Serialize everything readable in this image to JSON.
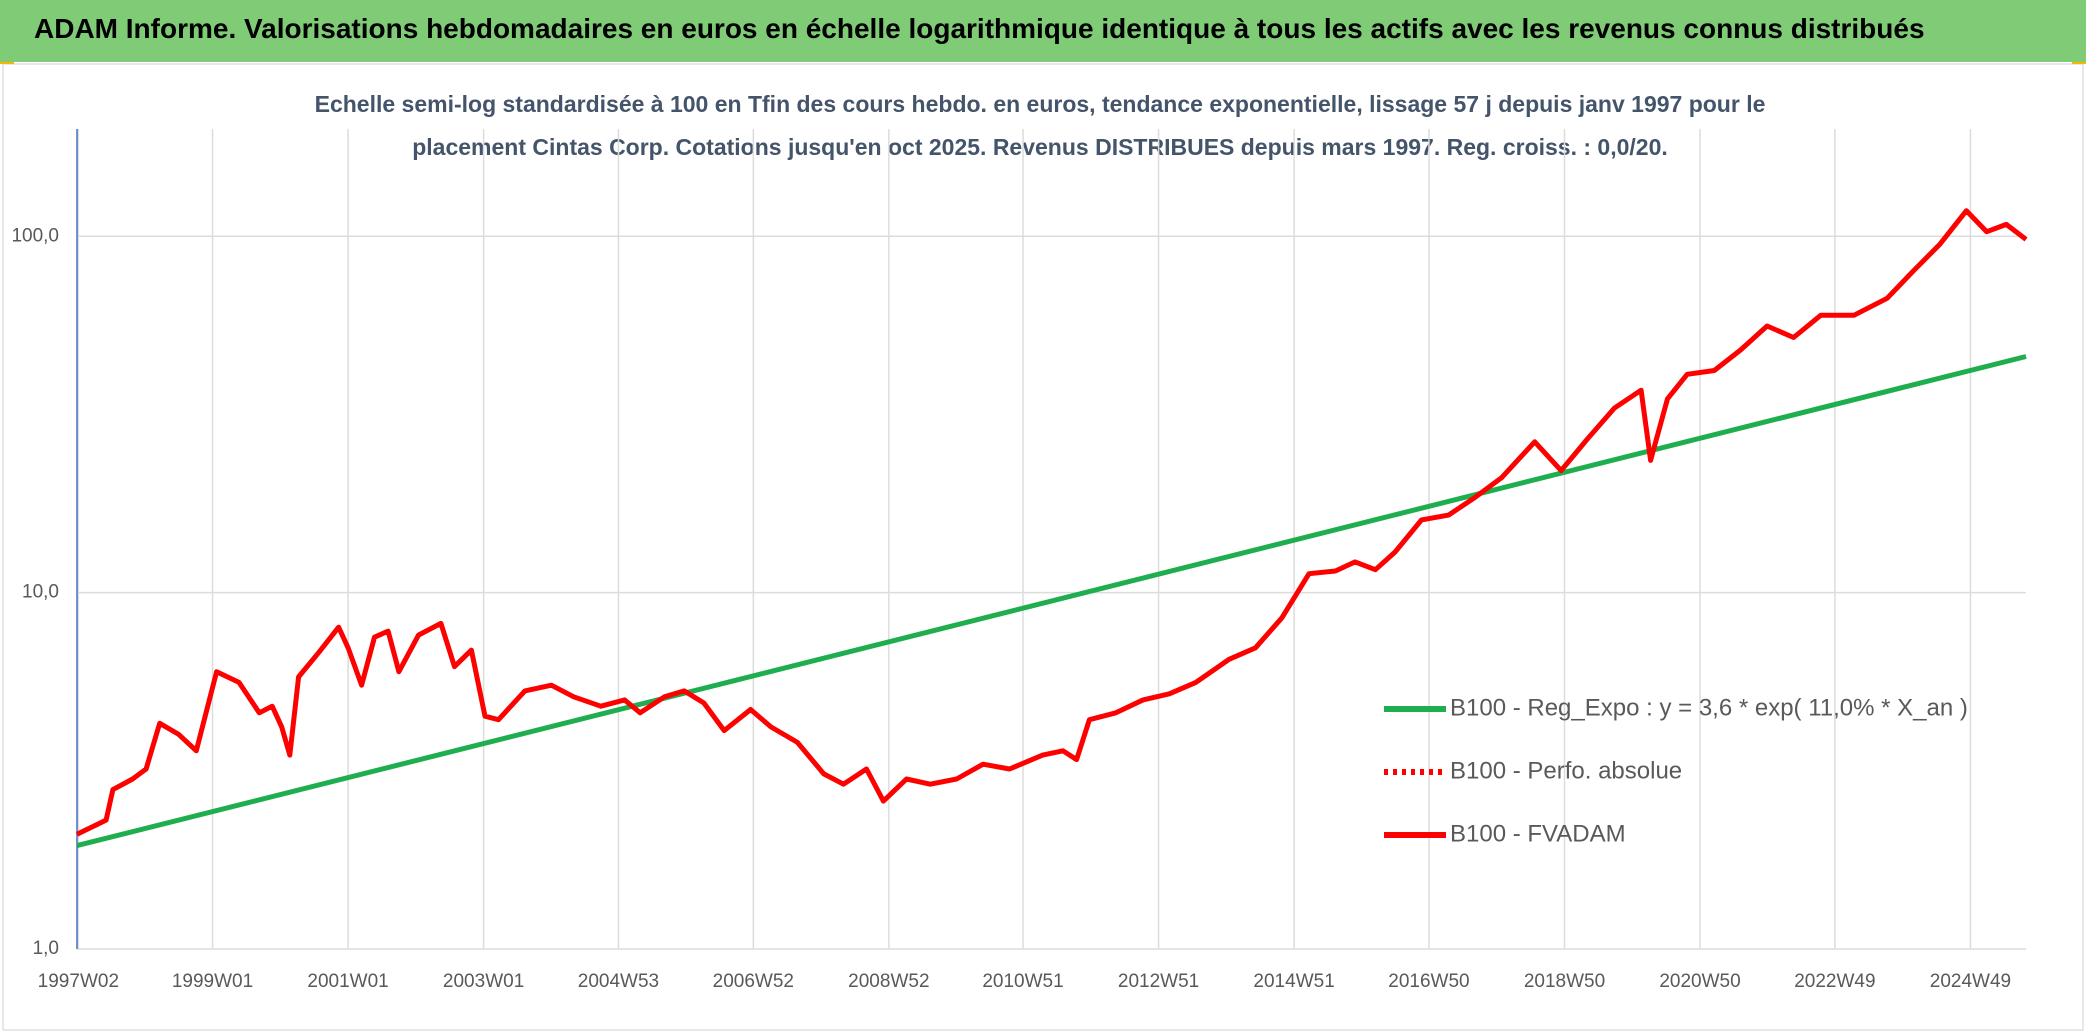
{
  "header": {
    "title": "ADAM Informe. Valorisations hebdomadaires en euros en échelle logarithmique identique à tous les actifs avec les revenus connus distribués"
  },
  "chart_data": {
    "type": "line",
    "subtitle": [
      "Echelle semi-log standardisée à 100 en Tfin des cours hebdo. en euros, tendance exponentielle, lissage 57 j depuis janv 1997 pour le",
      "placement Cintas Corp. Cotations jusqu'en oct 2025. Revenus DISTRIBUES depuis mars 1997. Reg. croiss. : 0,0/20."
    ],
    "log_scale": true,
    "grid": true,
    "legend": "right",
    "xlim": [
      1997.0,
      2025.76
    ],
    "xticks": [
      {
        "value": 1997.02,
        "label": "1997W02"
      },
      {
        "value": 1999.0,
        "label": "1999W01"
      },
      {
        "value": 2001.0,
        "label": "2001W01"
      },
      {
        "value": 2003.0,
        "label": "2003W01"
      },
      {
        "value": 2004.99,
        "label": "2004W53"
      },
      {
        "value": 2006.98,
        "label": "2006W52"
      },
      {
        "value": 2008.98,
        "label": "2008W52"
      },
      {
        "value": 2010.96,
        "label": "2010W51"
      },
      {
        "value": 2012.96,
        "label": "2012W51"
      },
      {
        "value": 2014.96,
        "label": "2014W51"
      },
      {
        "value": 2016.95,
        "label": "2016W50"
      },
      {
        "value": 2018.95,
        "label": "2018W50"
      },
      {
        "value": 2020.95,
        "label": "2020W50"
      },
      {
        "value": 2022.94,
        "label": "2022W49"
      },
      {
        "value": 2024.94,
        "label": "2024W49"
      }
    ],
    "ylim": [
      1,
      200
    ],
    "yticks": [
      {
        "value": 1,
        "label": "1,0"
      },
      {
        "value": 10,
        "label": "10,0"
      },
      {
        "value": 100,
        "label": "100,0"
      }
    ],
    "series": [
      {
        "name": "B100 - Reg_Expo : y = 3,6 * exp( 11,0% *  X_an )",
        "color": "#1fae4f",
        "style": "solid",
        "x": [
          1997.0,
          2025.76
        ],
        "values": [
          1.95,
          46
        ]
      },
      {
        "name": "B100 - Perfo. absolue",
        "color": "#ff0000",
        "style": "dotted",
        "x": [
          1997.0,
          1997.43,
          1997.53,
          1997.82,
          1998.02,
          1998.22,
          1998.5,
          1998.76,
          1999.06,
          1999.39,
          1999.69,
          1999.88,
          2000.02,
          2000.14,
          2000.27,
          2000.57,
          2000.86,
          2001.0,
          2001.2,
          2001.39,
          2001.59,
          2001.75,
          2002.04,
          2002.37,
          2002.57,
          2002.82,
          2003.02,
          2003.22,
          2003.61,
          2004.0,
          2004.33,
          2004.73,
          2005.08,
          2005.31,
          2005.67,
          2005.96,
          2006.25,
          2006.55,
          2006.94,
          2007.24,
          2007.63,
          2008.02,
          2008.31,
          2008.65,
          2008.9,
          2009.24,
          2009.59,
          2009.98,
          2010.37,
          2010.76,
          2011.25,
          2011.55,
          2011.75,
          2011.94,
          2012.33,
          2012.73,
          2013.12,
          2013.51,
          2014.0,
          2014.39,
          2014.78,
          2015.18,
          2015.57,
          2015.86,
          2016.16,
          2016.45,
          2016.84,
          2017.24,
          2017.63,
          2018.02,
          2018.51,
          2018.9,
          2019.29,
          2019.69,
          2020.08,
          2020.22,
          2020.47,
          2020.76,
          2021.16,
          2021.55,
          2021.94,
          2022.33,
          2022.73,
          2023.22,
          2023.71,
          2024.1,
          2024.49,
          2024.88,
          2025.18,
          2025.47,
          2025.76
        ],
        "values": [
          2.1,
          2.3,
          2.8,
          3.0,
          3.2,
          4.3,
          4.0,
          3.6,
          6.0,
          5.6,
          4.6,
          4.8,
          4.2,
          3.5,
          5.8,
          6.8,
          8.0,
          7.0,
          5.5,
          7.5,
          7.8,
          6.0,
          7.6,
          8.2,
          6.2,
          6.9,
          4.5,
          4.4,
          5.3,
          5.5,
          5.1,
          4.8,
          5.0,
          4.6,
          5.1,
          5.3,
          4.9,
          4.1,
          4.7,
          4.2,
          3.8,
          3.1,
          2.9,
          3.2,
          2.6,
          3.0,
          2.9,
          3.0,
          3.3,
          3.2,
          3.5,
          3.6,
          3.4,
          4.4,
          4.6,
          5.0,
          5.2,
          5.6,
          6.5,
          7.0,
          8.5,
          11.3,
          11.5,
          12.2,
          11.6,
          13.0,
          16.0,
          16.5,
          18.5,
          21.0,
          26.5,
          22.0,
          27.0,
          33.0,
          37.0,
          23.5,
          35.0,
          41.0,
          42.0,
          48.0,
          56.0,
          52.0,
          60.0,
          60.0,
          67.0,
          80.0,
          95.0,
          118.0,
          103.0,
          108.0,
          98.0
        ]
      },
      {
        "name": "B100 - FVADAM",
        "color": "#ff0000",
        "style": "solid",
        "x": [
          1997.0,
          1997.43,
          1997.53,
          1997.82,
          1998.02,
          1998.22,
          1998.5,
          1998.76,
          1999.06,
          1999.39,
          1999.69,
          1999.88,
          2000.02,
          2000.14,
          2000.27,
          2000.57,
          2000.86,
          2001.0,
          2001.2,
          2001.39,
          2001.59,
          2001.75,
          2002.04,
          2002.37,
          2002.57,
          2002.82,
          2003.02,
          2003.22,
          2003.61,
          2004.0,
          2004.33,
          2004.73,
          2005.08,
          2005.31,
          2005.67,
          2005.96,
          2006.25,
          2006.55,
          2006.94,
          2007.24,
          2007.63,
          2008.02,
          2008.31,
          2008.65,
          2008.9,
          2009.24,
          2009.59,
          2009.98,
          2010.37,
          2010.76,
          2011.25,
          2011.55,
          2011.75,
          2011.94,
          2012.33,
          2012.73,
          2013.12,
          2013.51,
          2014.0,
          2014.39,
          2014.78,
          2015.18,
          2015.57,
          2015.86,
          2016.16,
          2016.45,
          2016.84,
          2017.24,
          2017.63,
          2018.02,
          2018.51,
          2018.9,
          2019.29,
          2019.69,
          2020.08,
          2020.22,
          2020.47,
          2020.76,
          2021.16,
          2021.55,
          2021.94,
          2022.33,
          2022.73,
          2023.22,
          2023.71,
          2024.1,
          2024.49,
          2024.88,
          2025.18,
          2025.47,
          2025.76
        ],
        "values": [
          2.1,
          2.3,
          2.8,
          3.0,
          3.2,
          4.3,
          4.0,
          3.6,
          6.0,
          5.6,
          4.6,
          4.8,
          4.2,
          3.5,
          5.8,
          6.8,
          8.0,
          7.0,
          5.5,
          7.5,
          7.8,
          6.0,
          7.6,
          8.2,
          6.2,
          6.9,
          4.5,
          4.4,
          5.3,
          5.5,
          5.1,
          4.8,
          5.0,
          4.6,
          5.1,
          5.3,
          4.9,
          4.1,
          4.7,
          4.2,
          3.8,
          3.1,
          2.9,
          3.2,
          2.6,
          3.0,
          2.9,
          3.0,
          3.3,
          3.2,
          3.5,
          3.6,
          3.4,
          4.4,
          4.6,
          5.0,
          5.2,
          5.6,
          6.5,
          7.0,
          8.5,
          11.3,
          11.5,
          12.2,
          11.6,
          13.0,
          16.0,
          16.5,
          18.5,
          21.0,
          26.5,
          22.0,
          27.0,
          33.0,
          37.0,
          23.5,
          35.0,
          41.0,
          42.0,
          48.0,
          56.0,
          52.0,
          60.0,
          60.0,
          67.0,
          80.0,
          95.0,
          118.0,
          103.0,
          108.0,
          98.0
        ]
      }
    ]
  }
}
